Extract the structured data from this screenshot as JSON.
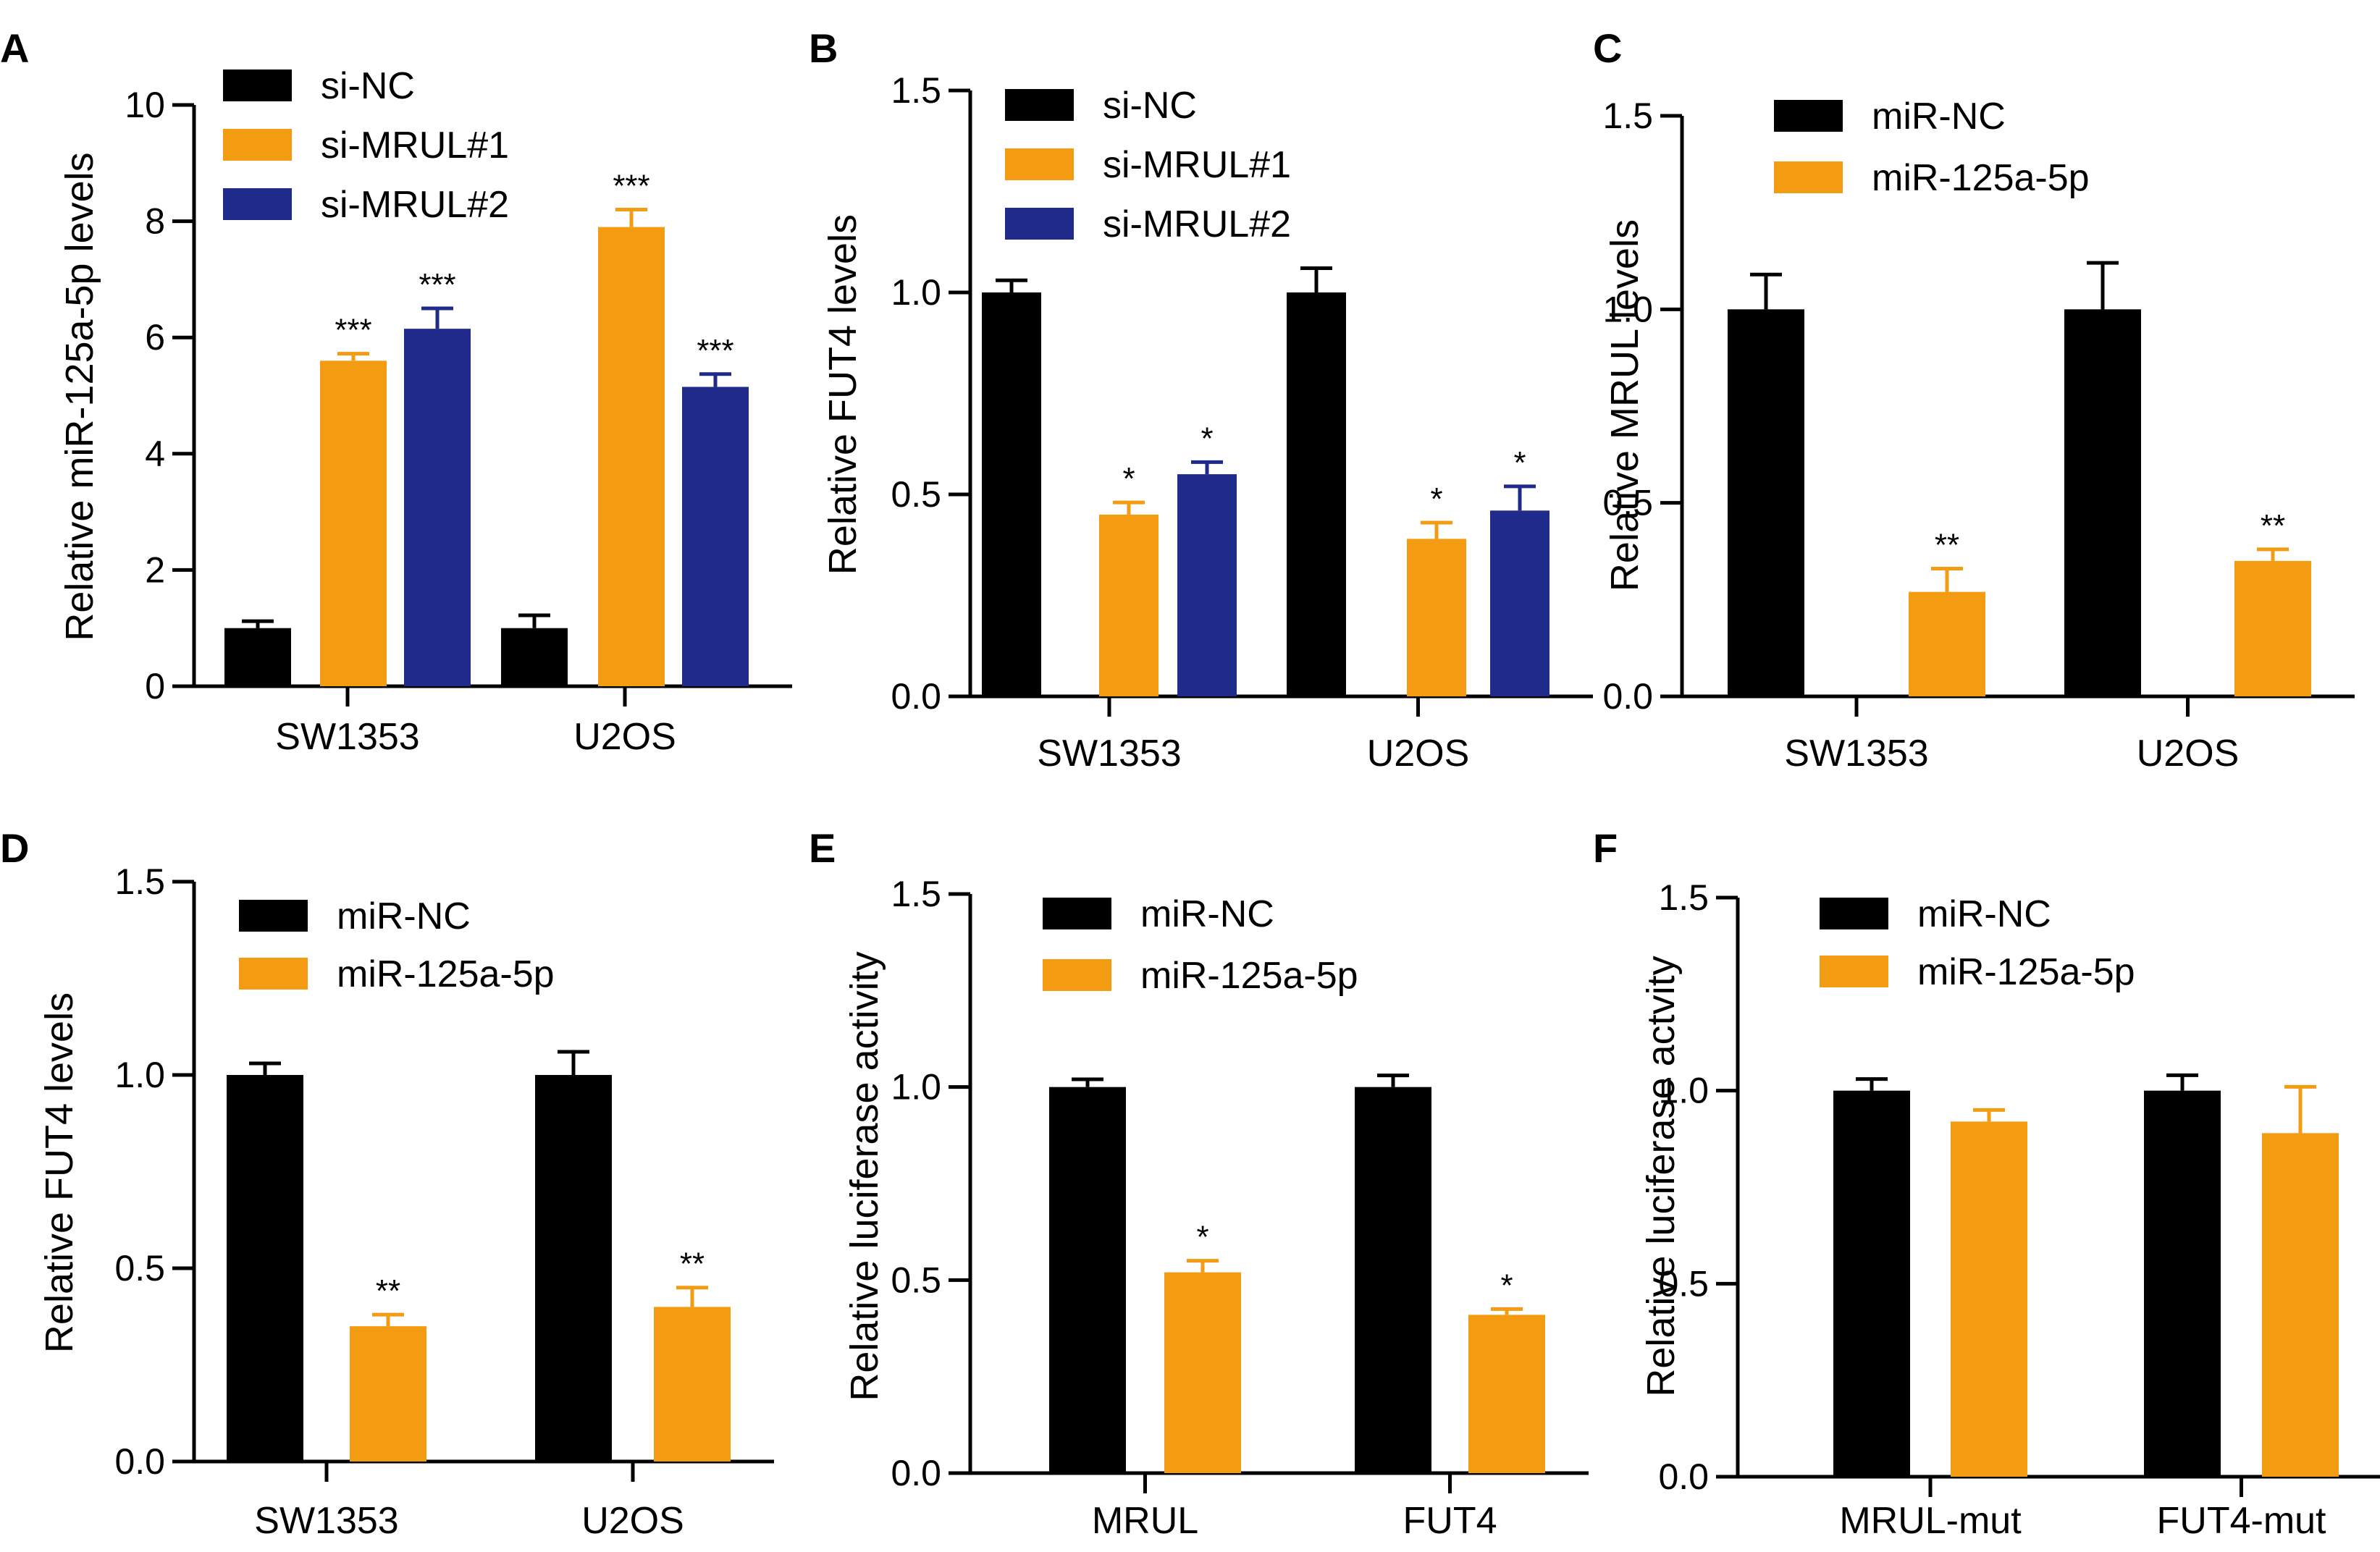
{
  "colors": {
    "black": "#000000",
    "orange": "#F39C12",
    "navy": "#1F2A8A"
  },
  "chart_data": [
    {
      "panel": "A",
      "type": "bar",
      "ylabel": "Relative miR-125a-5p levels",
      "ylim": [
        0,
        10
      ],
      "yticks": [
        "0",
        "2",
        "4",
        "6",
        "8",
        "10"
      ],
      "categories": [
        "SW1353",
        "U2OS"
      ],
      "series": [
        {
          "name": "si-NC",
          "color": "black",
          "values": [
            1.0,
            1.0
          ],
          "errors": [
            0.12,
            0.22
          ],
          "sig": [
            "",
            ""
          ]
        },
        {
          "name": "si-MRUL#1",
          "color": "orange",
          "values": [
            5.6,
            7.9
          ],
          "errors": [
            0.12,
            0.3
          ],
          "sig": [
            "***",
            "***"
          ]
        },
        {
          "name": "si-MRUL#2",
          "color": "navy",
          "values": [
            6.15,
            5.15
          ],
          "errors": [
            0.35,
            0.22
          ],
          "sig": [
            "***",
            "***"
          ]
        }
      ]
    },
    {
      "panel": "B",
      "type": "bar",
      "ylabel": "Relative FUT4 levels",
      "ylim": [
        0,
        1.5
      ],
      "yticks": [
        "0.0",
        "0.5",
        "1.0",
        "1.5"
      ],
      "categories": [
        "SW1353",
        "U2OS"
      ],
      "series": [
        {
          "name": "si-NC",
          "color": "black",
          "values": [
            1.0,
            1.0
          ],
          "errors": [
            0.03,
            0.06
          ],
          "sig": [
            "",
            ""
          ]
        },
        {
          "name": "si-MRUL#1",
          "color": "orange",
          "values": [
            0.45,
            0.39
          ],
          "errors": [
            0.03,
            0.04
          ],
          "sig": [
            "*",
            "*"
          ]
        },
        {
          "name": "si-MRUL#2",
          "color": "navy",
          "values": [
            0.55,
            0.46
          ],
          "errors": [
            0.03,
            0.06
          ],
          "sig": [
            "*",
            "*"
          ]
        }
      ]
    },
    {
      "panel": "C",
      "type": "bar",
      "ylabel": "Relative MRUL levels",
      "ylim": [
        0,
        1.5
      ],
      "yticks": [
        "0.0",
        "0.5",
        "1.0",
        "1.5"
      ],
      "categories": [
        "SW1353",
        "U2OS"
      ],
      "series": [
        {
          "name": "miR-NC",
          "color": "black",
          "values": [
            1.0,
            1.0
          ],
          "errors": [
            0.09,
            0.12
          ],
          "sig": [
            "",
            ""
          ]
        },
        {
          "name": "miR-125a-5p",
          "color": "orange",
          "values": [
            0.27,
            0.35
          ],
          "errors": [
            0.06,
            0.03
          ],
          "sig": [
            "**",
            "**"
          ]
        }
      ]
    },
    {
      "panel": "D",
      "type": "bar",
      "ylabel": "Relative FUT4 levels",
      "ylim": [
        0,
        1.5
      ],
      "yticks": [
        "0.0",
        "0.5",
        "1.0",
        "1.5"
      ],
      "categories": [
        "SW1353",
        "U2OS"
      ],
      "series": [
        {
          "name": "miR-NC",
          "color": "black",
          "values": [
            1.0,
            1.0
          ],
          "errors": [
            0.03,
            0.06
          ],
          "sig": [
            "",
            ""
          ]
        },
        {
          "name": "miR-125a-5p",
          "color": "orange",
          "values": [
            0.35,
            0.4
          ],
          "errors": [
            0.03,
            0.05
          ],
          "sig": [
            "**",
            "**"
          ]
        }
      ]
    },
    {
      "panel": "E",
      "type": "bar",
      "ylabel": "Relative  luciferase activity",
      "ylim": [
        0,
        1.5
      ],
      "yticks": [
        "0.0",
        "0.5",
        "1.0",
        "1.5"
      ],
      "categories": [
        "MRUL",
        "FUT4"
      ],
      "series": [
        {
          "name": "miR-NC",
          "color": "black",
          "values": [
            1.0,
            1.0
          ],
          "errors": [
            0.02,
            0.03
          ],
          "sig": [
            "",
            ""
          ]
        },
        {
          "name": "miR-125a-5p",
          "color": "orange",
          "values": [
            0.52,
            0.41
          ],
          "errors": [
            0.03,
            0.015
          ],
          "sig": [
            "*",
            "*"
          ]
        }
      ]
    },
    {
      "panel": "F",
      "type": "bar",
      "ylabel": "Relative  luciferase actvity",
      "ylim": [
        0,
        1.5
      ],
      "yticks": [
        "0.0",
        "0.5",
        "1.0",
        "1.5"
      ],
      "categories": [
        "MRUL-mut",
        "FUT4-mut"
      ],
      "series": [
        {
          "name": "miR-NC",
          "color": "black",
          "values": [
            1.0,
            1.0
          ],
          "errors": [
            0.03,
            0.04
          ],
          "sig": [
            "",
            ""
          ]
        },
        {
          "name": "miR-125a-5p",
          "color": "orange",
          "values": [
            0.92,
            0.89
          ],
          "errors": [
            0.03,
            0.12
          ],
          "sig": [
            "",
            ""
          ]
        }
      ]
    }
  ]
}
